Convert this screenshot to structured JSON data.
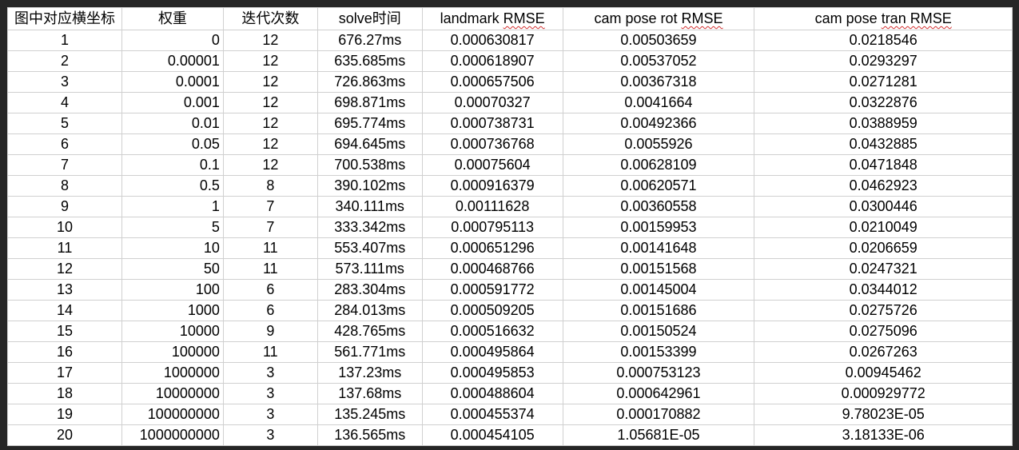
{
  "table": {
    "headers": [
      {
        "text": "图中对应横坐标",
        "spell_mark": ""
      },
      {
        "text": "权重",
        "spell_mark": ""
      },
      {
        "text": "迭代次数",
        "spell_mark": ""
      },
      {
        "text": "solve时间",
        "spell_mark": ""
      },
      {
        "text": "landmark RMSE",
        "spell_mark": "RMSE"
      },
      {
        "text": "cam pose rot RMSE",
        "spell_mark": "RMSE"
      },
      {
        "text": "cam pose tran RMSE",
        "spell_mark": "tran RMSE"
      }
    ],
    "rows": [
      [
        "1",
        "0",
        "12",
        "676.27ms",
        "0.000630817",
        "0.00503659",
        "0.0218546"
      ],
      [
        "2",
        "0.00001",
        "12",
        "635.685ms",
        "0.000618907",
        "0.00537052",
        "0.0293297"
      ],
      [
        "3",
        "0.0001",
        "12",
        "726.863ms",
        "0.000657506",
        "0.00367318",
        "0.0271281"
      ],
      [
        "4",
        "0.001",
        "12",
        "698.871ms",
        "0.00070327",
        "0.0041664",
        "0.0322876"
      ],
      [
        "5",
        "0.01",
        "12",
        "695.774ms",
        "0.000738731",
        "0.00492366",
        "0.0388959"
      ],
      [
        "6",
        "0.05",
        "12",
        "694.645ms",
        "0.000736768",
        "0.0055926",
        "0.0432885"
      ],
      [
        "7",
        "0.1",
        "12",
        "700.538ms",
        "0.00075604",
        "0.00628109",
        "0.0471848"
      ],
      [
        "8",
        "0.5",
        "8",
        "390.102ms",
        "0.000916379",
        "0.00620571",
        "0.0462923"
      ],
      [
        "9",
        "1",
        "7",
        "340.111ms",
        "0.00111628",
        "0.00360558",
        "0.0300446"
      ],
      [
        "10",
        "5",
        "7",
        "333.342ms",
        "0.000795113",
        "0.00159953",
        "0.0210049"
      ],
      [
        "11",
        "10",
        "11",
        "553.407ms",
        "0.000651296",
        "0.00141648",
        "0.0206659"
      ],
      [
        "12",
        "50",
        "11",
        "573.111ms",
        "0.000468766",
        "0.00151568",
        "0.0247321"
      ],
      [
        "13",
        "100",
        "6",
        "283.304ms",
        "0.000591772",
        "0.00145004",
        "0.0344012"
      ],
      [
        "14",
        "1000",
        "6",
        "284.013ms",
        "0.000509205",
        "0.00151686",
        "0.0275726"
      ],
      [
        "15",
        "10000",
        "9",
        "428.765ms",
        "0.000516632",
        "0.00150524",
        "0.0275096"
      ],
      [
        "16",
        "100000",
        "11",
        "561.771ms",
        "0.000495864",
        "0.00153399",
        "0.0267263"
      ],
      [
        "17",
        "1000000",
        "3",
        "137.23ms",
        "0.000495853",
        "0.000753123",
        "0.00945462"
      ],
      [
        "18",
        "10000000",
        "3",
        "137.68ms",
        "0.000488604",
        "0.000642961",
        "0.000929772"
      ],
      [
        "19",
        "100000000",
        "3",
        "135.245ms",
        "0.000455374",
        "0.000170882",
        "9.78023E-05"
      ],
      [
        "20",
        "1000000000",
        "3",
        "136.565ms",
        "0.000454105",
        "1.05681E-05",
        "3.18133E-06"
      ]
    ],
    "column_align": [
      "center",
      "right",
      "center",
      "center",
      "center",
      "center",
      "center"
    ],
    "colors": {
      "background": "#262626",
      "sheet": "#ffffff",
      "grid": "#d0d0d0",
      "text": "#000000",
      "spellcheck": "#d32f2f"
    }
  }
}
